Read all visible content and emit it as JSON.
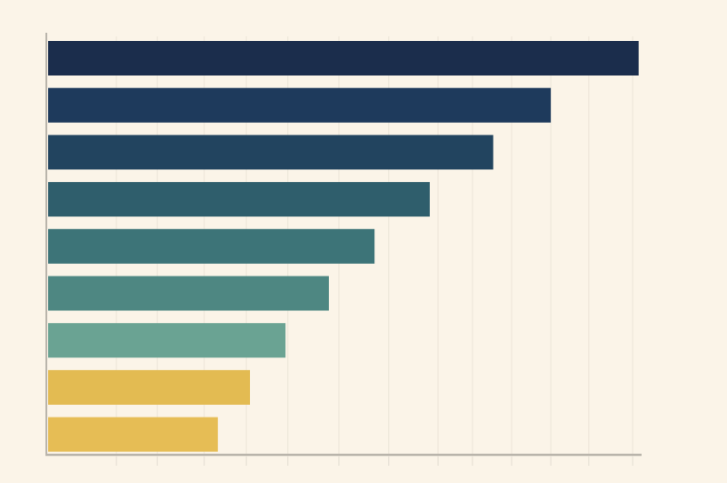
{
  "chart_data": {
    "type": "bar",
    "orientation": "horizontal",
    "title": "",
    "xlabel": "",
    "ylabel": "",
    "categories": [
      "",
      "",
      "",
      "",
      "",
      "",
      "",
      "",
      ""
    ],
    "values": [
      99.5,
      84.7,
      75.0,
      64.3,
      55.0,
      47.3,
      40.0,
      34.0,
      28.6
    ],
    "colors": [
      "#1b2d4c",
      "#1e3a5c",
      "#22445f",
      "#2f5e6c",
      "#3d7478",
      "#4e8782",
      "#6aa393",
      "#e3bb52",
      "#e6bd55"
    ],
    "xlim": [
      0,
      100
    ],
    "x_gridlines": [
      11.5,
      18.4,
      26.3,
      33.4,
      40.4,
      49.0,
      57.4,
      65.7,
      71.5,
      78.1,
      84.7,
      91.1,
      98.5
    ],
    "grid": true,
    "legend": "none",
    "background": "#fbf4e8"
  }
}
